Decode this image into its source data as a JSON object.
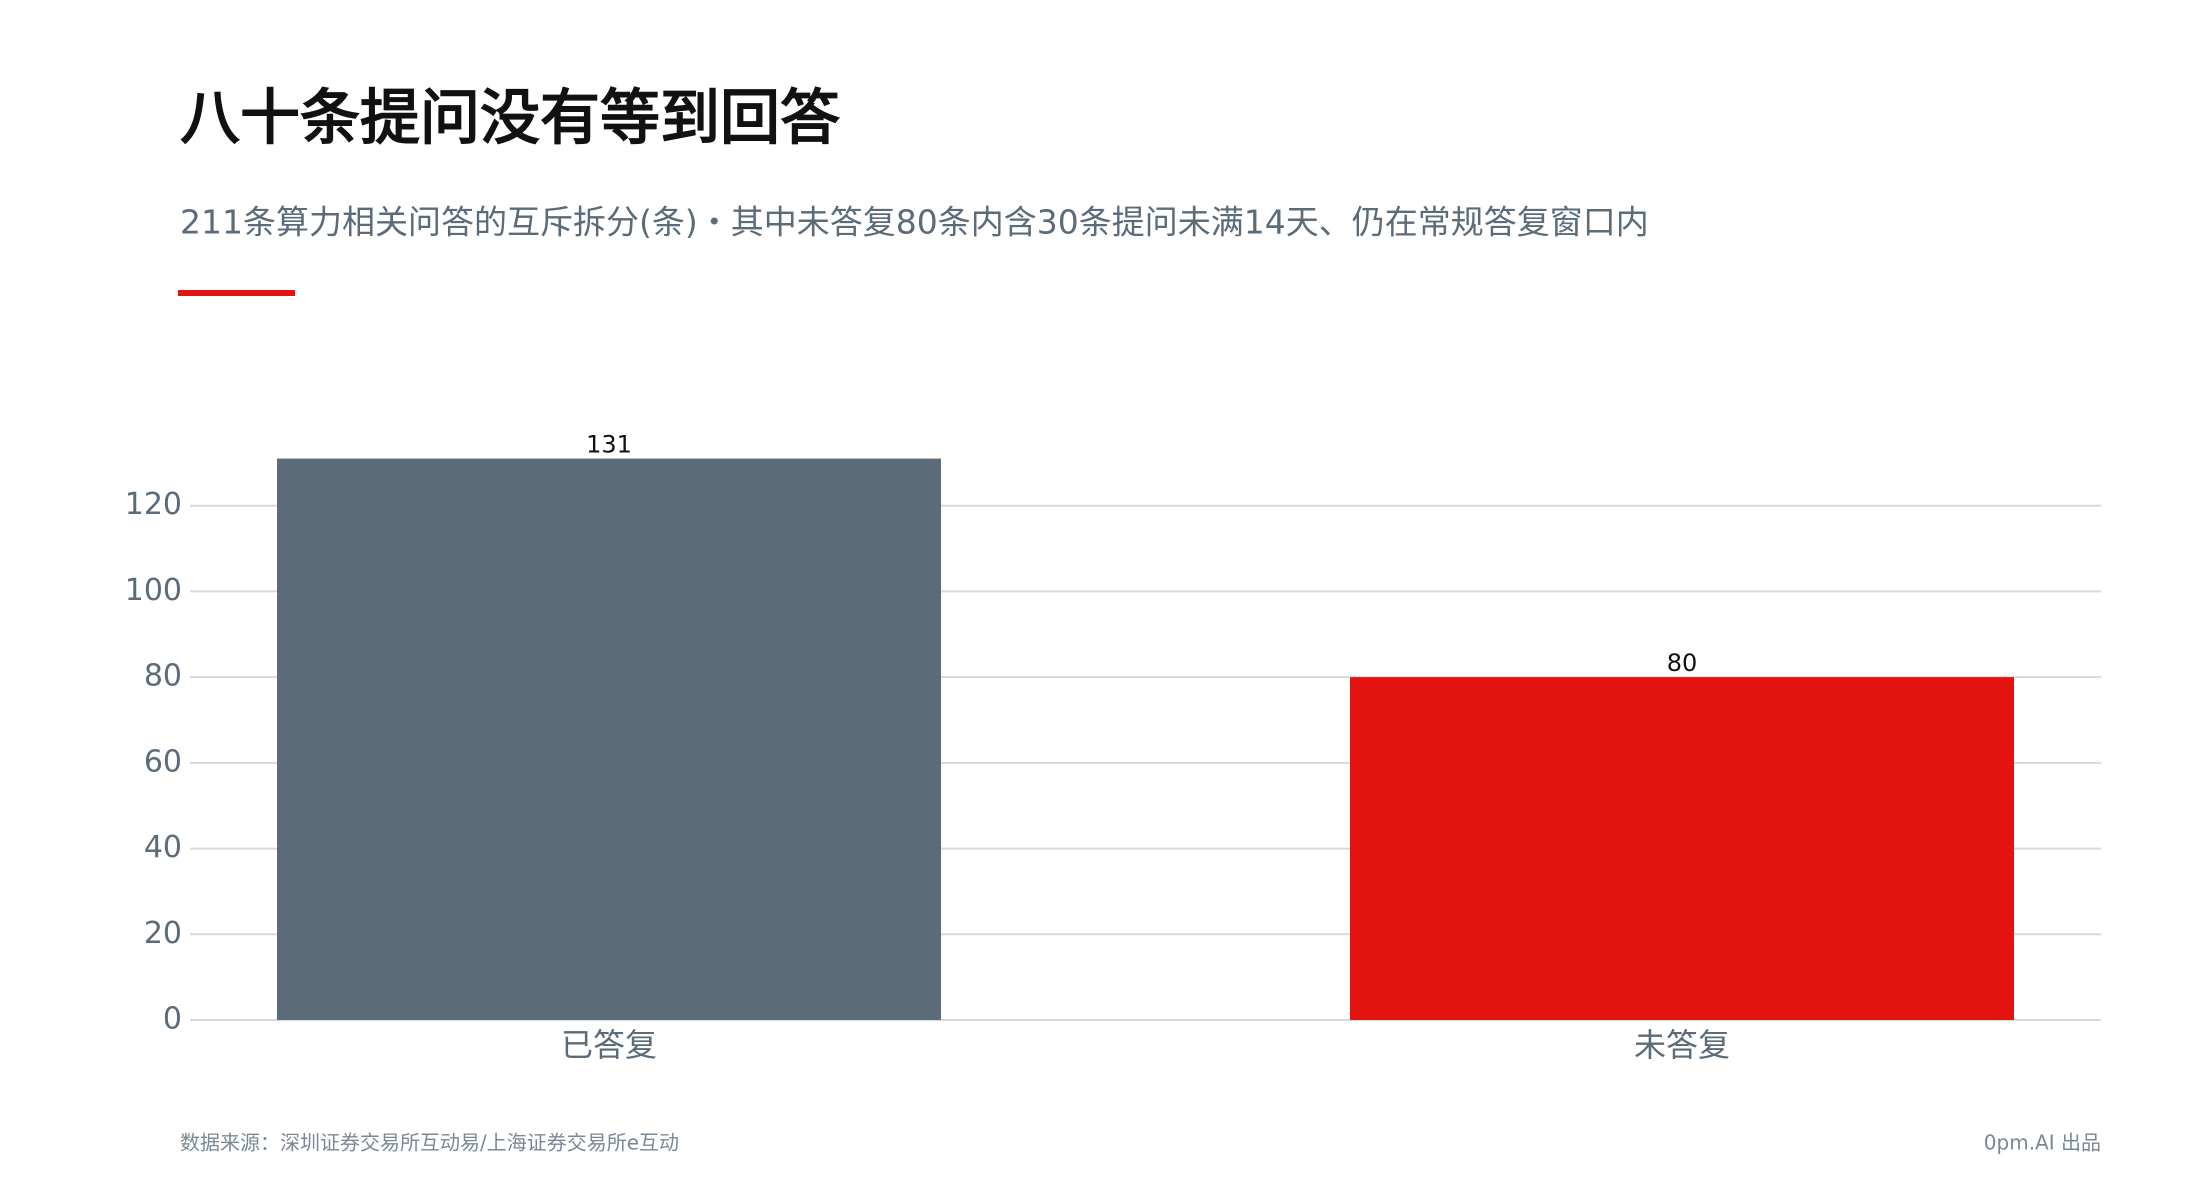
{
  "chart_data": {
    "type": "bar",
    "title": "八十条提问没有等到回答",
    "subtitle": "211条算力相关问答的互斥拆分(条)・其中未答复80条内含30条提问未满14天、仍在常规答复窗口内",
    "categories": [
      "已答复",
      "未答复"
    ],
    "values": [
      131,
      80
    ],
    "colors": [
      "#5b6b7a",
      "#e3140f"
    ],
    "ylim": [
      0,
      140
    ],
    "yticks": [
      0,
      20,
      40,
      60,
      80,
      100,
      120
    ],
    "grid": true,
    "source": "数据来源：深圳证券交易所互动易/上海证券交易所e互动",
    "credit": "0pm.AI 出品"
  }
}
